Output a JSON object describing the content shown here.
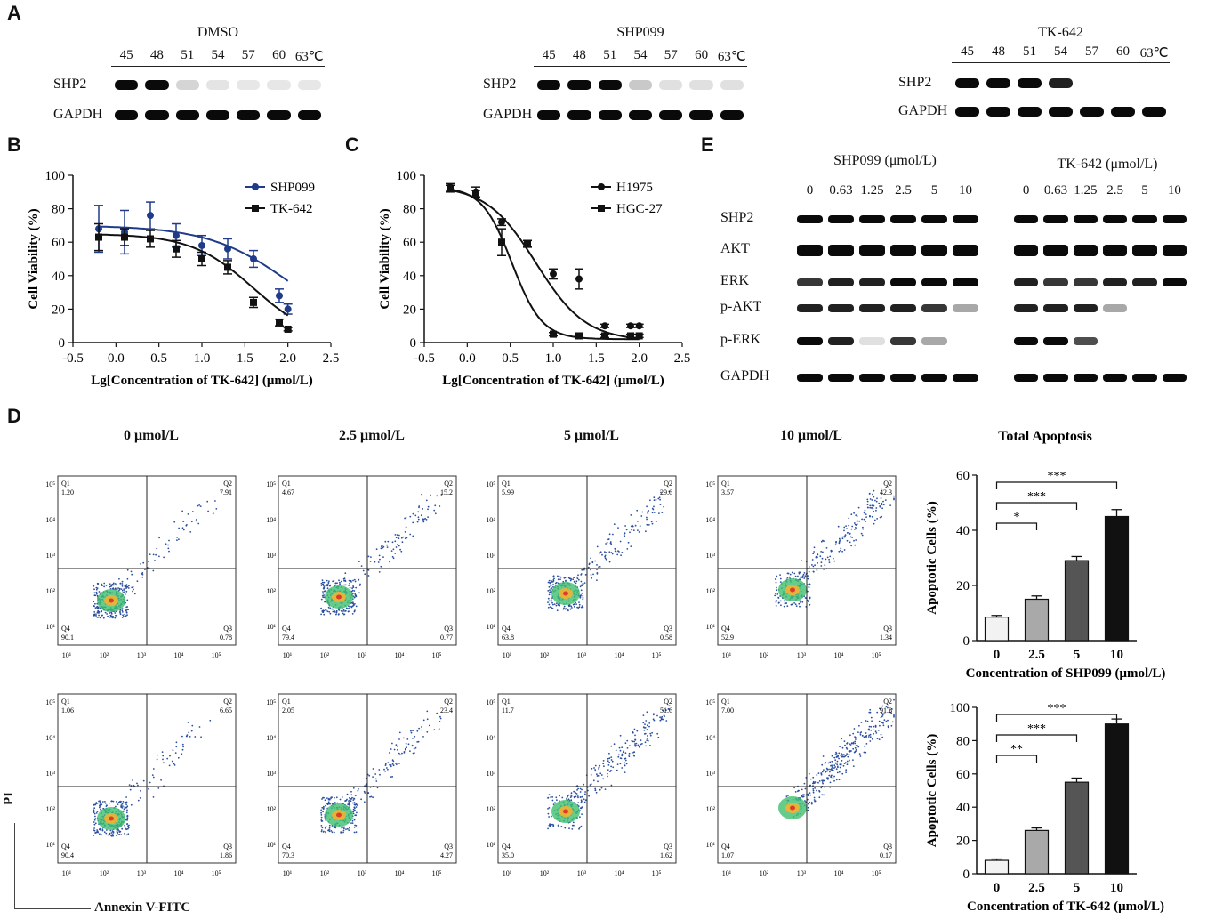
{
  "panel_letters": {
    "a": "A",
    "b": "B",
    "c": "C",
    "d": "D",
    "e": "E"
  },
  "panel_a": {
    "blots": [
      {
        "title": "DMSO",
        "lanes": [
          "45",
          "48",
          "51",
          "54",
          "57",
          "60",
          "63℃"
        ],
        "rows": [
          {
            "label": "SHP2",
            "intensities": [
              1,
              1,
              0.1,
              0.03,
              0.02,
              0.02,
              0.02
            ]
          },
          {
            "label": "GAPDH",
            "intensities": [
              1,
              1,
              1,
              1,
              1,
              1,
              1
            ]
          }
        ]
      },
      {
        "title": "SHP099",
        "lanes": [
          "45",
          "48",
          "51",
          "54",
          "57",
          "60",
          "63℃"
        ],
        "rows": [
          {
            "label": "SHP2",
            "intensities": [
              1,
              1,
              1,
              0.15,
              0.05,
              0.05,
              0.05
            ]
          },
          {
            "label": "GAPDH",
            "intensities": [
              1,
              1,
              1,
              1,
              1,
              1,
              1
            ]
          }
        ]
      },
      {
        "title": "TK-642",
        "lanes": [
          "45",
          "48",
          "51",
          "54",
          "57",
          "60",
          "63℃"
        ],
        "rows": [
          {
            "label": "SHP2",
            "intensities": [
              1,
              1,
              1,
              0.9,
              0,
              0,
              0
            ]
          },
          {
            "label": "GAPDH",
            "intensities": [
              1,
              1,
              1,
              1,
              1,
              1,
              1
            ]
          }
        ]
      }
    ]
  },
  "chart_data": [
    {
      "type": "line",
      "panel": "B",
      "xlabel": "Lg[Concentration of TK-642] (μmol/L)",
      "ylabel": "Cell Viability (%)",
      "xlim": [
        -0.5,
        2.5
      ],
      "ylim": [
        0,
        100
      ],
      "xticks": [
        "-0.5",
        "0.0",
        "0.5",
        "1.0",
        "1.5",
        "2.0",
        "2.5"
      ],
      "yticks": [
        "0",
        "20",
        "40",
        "60",
        "80",
        "100"
      ],
      "series": [
        {
          "name": "SHP099",
          "marker": "circle",
          "color": "#1f3b8a",
          "x": [
            -0.2,
            0.1,
            0.4,
            0.7,
            1.0,
            1.3,
            1.6,
            1.9,
            2.0
          ],
          "y": [
            68,
            66,
            76,
            64,
            58,
            56,
            50,
            28,
            20
          ],
          "err": [
            14,
            13,
            8,
            7,
            6,
            6,
            5,
            4,
            3
          ],
          "curve": {
            "top": 70,
            "bottom": 0,
            "logic50": 2.05,
            "hill": 0.9
          }
        },
        {
          "name": "TK-642",
          "marker": "square",
          "color": "#111111",
          "x": [
            -0.2,
            0.1,
            0.4,
            0.7,
            1.0,
            1.3,
            1.6,
            1.9,
            2.0
          ],
          "y": [
            63,
            63,
            62,
            56,
            50,
            45,
            24,
            12,
            8
          ],
          "err": [
            8,
            5,
            5,
            5,
            4,
            4,
            3,
            2,
            1
          ],
          "curve": {
            "top": 65,
            "bottom": 0,
            "logic50": 1.6,
            "hill": 1.2
          }
        }
      ]
    },
    {
      "type": "line",
      "panel": "C",
      "xlabel": "Lg[Concentration of TK-642] (μmol/L)",
      "ylabel": "Cell Viability (%)",
      "xlim": [
        -0.5,
        2.5
      ],
      "ylim": [
        0,
        100
      ],
      "xticks": [
        "-0.5",
        "0.0",
        "0.5",
        "1.0",
        "1.5",
        "2.0",
        "2.5"
      ],
      "yticks": [
        "0",
        "20",
        "40",
        "60",
        "80",
        "100"
      ],
      "series": [
        {
          "name": "H1975",
          "marker": "circle",
          "color": "#111111",
          "x": [
            -0.2,
            0.1,
            0.4,
            0.7,
            1.0,
            1.3,
            1.6,
            1.9,
            2.0
          ],
          "y": [
            93,
            90,
            72,
            59,
            41,
            38,
            10,
            10,
            10
          ],
          "err": [
            2,
            3,
            2,
            2,
            3,
            6,
            1,
            1,
            1
          ],
          "curve": {
            "top": 94,
            "bottom": 1,
            "logic50": 0.8,
            "hill": 1.5
          }
        },
        {
          "name": "HGC-27",
          "marker": "square",
          "color": "#111111",
          "x": [
            -0.2,
            0.1,
            0.4,
            0.7,
            1.0,
            1.3,
            1.6,
            1.9,
            2.0
          ],
          "y": [
            92,
            89,
            60,
            59,
            5,
            4,
            4,
            4,
            4
          ],
          "err": [
            2,
            2,
            8,
            2,
            1,
            1,
            1,
            1,
            1
          ],
          "curve": {
            "top": 93,
            "bottom": 2,
            "logic50": 0.52,
            "hill": 2.5
          }
        }
      ]
    },
    {
      "type": "bar",
      "panel": "D-SHP099",
      "title": "Total Apoptosis",
      "categories": [
        "0",
        "2.5",
        "5",
        "10"
      ],
      "values": [
        8.5,
        15,
        29,
        45
      ],
      "errors": [
        0.6,
        1.2,
        1.5,
        2.5
      ],
      "colors": [
        "#f2f2f2",
        "#a9a9a9",
        "#555555",
        "#111111"
      ],
      "xlabel": "Concentration of SHP099 (μmol/L)",
      "ylabel": "Apoptotic Cells (%)",
      "ylim": [
        0,
        60
      ],
      "yticks": [
        "0",
        "20",
        "40",
        "60"
      ],
      "significance": [
        {
          "from": 0,
          "to": 1,
          "label": "*"
        },
        {
          "from": 0,
          "to": 2,
          "label": "***"
        },
        {
          "from": 0,
          "to": 3,
          "label": "***"
        }
      ]
    },
    {
      "type": "bar",
      "panel": "D-TK-642",
      "categories": [
        "0",
        "2.5",
        "5",
        "10"
      ],
      "values": [
        8,
        26,
        55,
        90
      ],
      "errors": [
        0.8,
        1.5,
        2.5,
        3
      ],
      "colors": [
        "#f2f2f2",
        "#a9a9a9",
        "#555555",
        "#111111"
      ],
      "xlabel": "Concentration of TK-642 (μmol/L)",
      "ylabel": "Apoptotic Cells (%)",
      "ylim": [
        0,
        100
      ],
      "yticks": [
        "0",
        "20",
        "40",
        "60",
        "80",
        "100"
      ],
      "significance": [
        {
          "from": 0,
          "to": 1,
          "label": "**"
        },
        {
          "from": 0,
          "to": 2,
          "label": "***"
        },
        {
          "from": 0,
          "to": 3,
          "label": "***"
        }
      ]
    }
  ],
  "panel_e": {
    "groups": [
      {
        "title": "SHP099 (μmol/L)",
        "lanes": [
          "0",
          "0.63",
          "1.25",
          "2.5",
          "5",
          "10"
        ],
        "intensities": {
          "SHP2": [
            1,
            1,
            1,
            1,
            1,
            1
          ],
          "AKT": [
            1,
            1,
            1,
            1,
            1,
            1
          ],
          "ERK": [
            0.8,
            0.9,
            0.9,
            1,
            1,
            1
          ],
          "p-AKT": [
            0.9,
            0.9,
            0.9,
            0.9,
            0.8,
            0.3
          ],
          "p-ERK": [
            1,
            0.9,
            0.05,
            0.8,
            0.3,
            0
          ],
          "GAPDH": [
            1,
            1,
            1,
            1,
            1,
            1
          ]
        }
      },
      {
        "title": "TK-642 (μmol/L)",
        "lanes": [
          "0",
          "0.63",
          "1.25",
          "2.5",
          "5",
          "10"
        ],
        "intensities": {
          "SHP2": [
            1,
            1,
            1,
            1,
            1,
            1
          ],
          "AKT": [
            1,
            1,
            1,
            1,
            1,
            1
          ],
          "ERK": [
            0.9,
            0.8,
            0.8,
            0.9,
            0.9,
            1
          ],
          "p-AKT": [
            0.9,
            0.9,
            0.9,
            0.3,
            0,
            0
          ],
          "p-ERK": [
            1,
            1,
            0.7,
            0,
            0,
            0
          ],
          "GAPDH": [
            1,
            1,
            1,
            1,
            1,
            1
          ]
        }
      }
    ],
    "row_labels": [
      "SHP2",
      "AKT",
      "ERK",
      "p-AKT",
      "p-ERK",
      "GAPDH"
    ]
  },
  "flow": {
    "column_titles": [
      "0 μmol/L",
      "2.5 μmol/L",
      "5 μmol/L",
      "10 μmol/L"
    ],
    "rows": [
      [
        {
          "q1": "1.20",
          "q2": "7.91",
          "q3": "0.78",
          "q4": "90.1"
        },
        {
          "q1": "4.67",
          "q2": "15.2",
          "q3": "0.77",
          "q4": "79.4"
        },
        {
          "q1": "5.99",
          "q2": "29.6",
          "q3": "0.58",
          "q4": "63.8"
        },
        {
          "q1": "3.57",
          "q2": "42.3",
          "q3": "1.34",
          "q4": "52.9"
        }
      ],
      [
        {
          "q1": "1.06",
          "q2": "6.65",
          "q3": "1.86",
          "q4": "90.4"
        },
        {
          "q1": "2.05",
          "q2": "23.4",
          "q3": "4.27",
          "q4": "70.3"
        },
        {
          "q1": "11.7",
          "q2": "51.6",
          "q3": "1.62",
          "q4": "35.0"
        },
        {
          "q1": "7.00",
          "q2": "91.8",
          "q3": "0.17",
          "q4": "1.07"
        }
      ]
    ],
    "quadrant_names": [
      "Q1",
      "Q2",
      "Q3",
      "Q4"
    ],
    "axis_ticks": [
      "10¹",
      "10²",
      "10³",
      "10⁴",
      "10⁵"
    ],
    "y_axis_label": "PI",
    "x_axis_label": "Annexin V-FITC"
  }
}
